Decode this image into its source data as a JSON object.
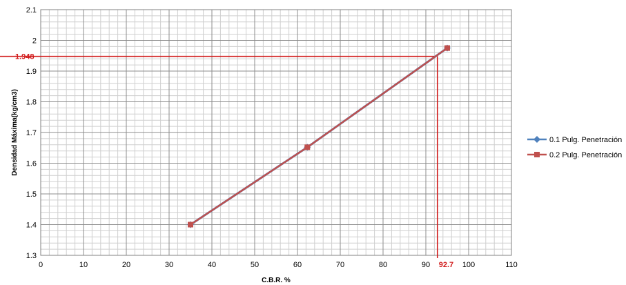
{
  "chart_data": {
    "type": "line",
    "xlabel": "C.B.R. %",
    "ylabel": "Densidad Máxima(kg/cm3)",
    "xlim": [
      0,
      110
    ],
    "ylim": [
      1.3,
      2.1
    ],
    "x_ticks": [
      "0",
      "10",
      "20",
      "30",
      "40",
      "50",
      "60",
      "70",
      "80",
      "90",
      "100",
      "110"
    ],
    "y_ticks": [
      "1.3",
      "1.4",
      "1.5",
      "1.6",
      "1.7",
      "1.8",
      "1.9",
      "2",
      "2.1"
    ],
    "grid": true,
    "legend_position": "right",
    "series": [
      {
        "name": "0.1 Pulg. Penetración",
        "color": "#4f81bd",
        "marker": "diamond",
        "x": [
          35,
          62.3,
          95
        ],
        "y": [
          1.4,
          1.652,
          1.975
        ]
      },
      {
        "name": "0.2 Pulg. Penetración",
        "color": "#c0504d",
        "marker": "square",
        "x": [
          35,
          62.3,
          95
        ],
        "y": [
          1.4,
          1.652,
          1.975
        ]
      }
    ],
    "reference": {
      "color": "#d11a1a",
      "x": 92.7,
      "y": 1.948,
      "x_label": "92.7",
      "y_label": "1.948"
    }
  }
}
